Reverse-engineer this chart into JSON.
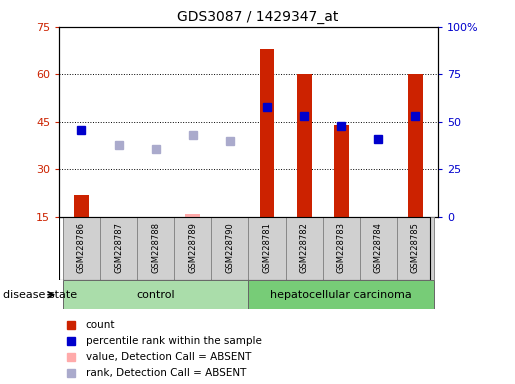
{
  "title": "GDS3087 / 1429347_at",
  "samples": [
    "GSM228786",
    "GSM228787",
    "GSM228788",
    "GSM228789",
    "GSM228790",
    "GSM228781",
    "GSM228782",
    "GSM228783",
    "GSM228784",
    "GSM228785"
  ],
  "count": [
    22,
    15,
    15,
    16,
    15,
    68,
    60,
    44,
    15,
    60
  ],
  "count_absent": [
    false,
    true,
    false,
    true,
    false,
    false,
    false,
    false,
    false,
    false
  ],
  "percentile_rank": [
    46,
    null,
    null,
    null,
    null,
    58,
    53,
    48,
    41,
    53
  ],
  "rank_absent": [
    null,
    38,
    36,
    43,
    40,
    null,
    null,
    null,
    null,
    null
  ],
  "ylim_left": [
    15,
    75
  ],
  "ylim_right": [
    0,
    100
  ],
  "yticks_left": [
    15,
    30,
    45,
    60,
    75
  ],
  "yticks_right": [
    0,
    25,
    50,
    75,
    100
  ],
  "ytick_right_labels": [
    "0",
    "25",
    "50",
    "75",
    "100%"
  ],
  "bar_color_present": "#cc2200",
  "bar_color_absent": "#ffaaaa",
  "dot_color_present": "#0000cc",
  "dot_color_absent": "#aaaacc",
  "grid_color": "#000000",
  "bg_color": "#ffffff",
  "label_color_left": "#cc2200",
  "label_color_right": "#0000cc",
  "control_color": "#aaddaa",
  "carcinoma_color": "#77cc77",
  "sample_box_color": "#d0d0d0",
  "n_control": 5,
  "n_carcinoma": 5
}
